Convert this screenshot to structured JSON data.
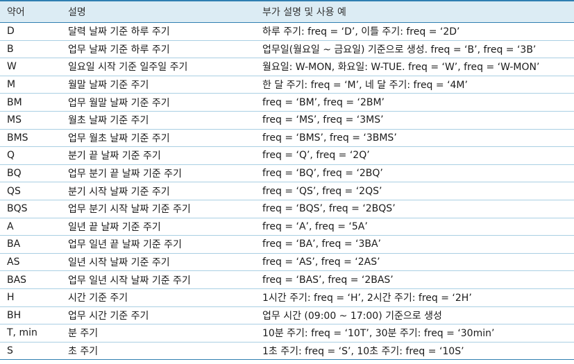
{
  "header": [
    "약어",
    "설명",
    "부가 설명 및 사용 예"
  ],
  "rows": [
    [
      "D",
      "달력 날짜 기준 하루 주기",
      "하루 주기: freq = ‘D’, 이틀 주기: freq = ‘2D’"
    ],
    [
      "B",
      "업무 날짜 기준 하루 주기",
      "업무일(월요일 ~ 금요일) 기준으로 생성. freq = ‘B’, freq = ‘3B’"
    ],
    [
      "W",
      "일요일 시작 기준 일주일 주기",
      "월요일: W-MON, 화요일: W-TUE. freq = ‘W’, freq = ‘W-MON’"
    ],
    [
      "M",
      "월말 날짜 기준 주기",
      "한 달 주기: freq = ‘M’, 네 달 주기: freq = ‘4M’"
    ],
    [
      "BM",
      "업무 월말 날짜 기준 주기",
      "freq = ‘BM’, freq = ‘2BM’"
    ],
    [
      "MS",
      "월초 날짜 기준 주기",
      "freq = ‘MS’, freq = ‘3MS’"
    ],
    [
      "BMS",
      "업무 월초 날짜 기준 주기",
      "freq = ‘BMS’, freq = ‘3BMS’"
    ],
    [
      "Q",
      "분기 끝 날짜 기준 주기",
      "freq = ‘Q’, freq = ‘2Q’"
    ],
    [
      "BQ",
      "업무 분기 끝 날짜 기준 주기",
      "freq = ‘BQ’, freq = ‘2BQ’"
    ],
    [
      "QS",
      "분기 시작 날짜 기준 주기",
      "freq = ‘QS’, freq = ‘2QS’"
    ],
    [
      "BQS",
      "업무 분기 시작 날짜 기준 주기",
      "freq = ‘BQS’, freq = ‘2BQS’"
    ],
    [
      "A",
      "일년 끝 날짜 기준 주기",
      "freq = ‘A’, freq = ‘5A’"
    ],
    [
      "BA",
      "업무 일년 끝 날짜 기준 주기",
      "freq = ‘BA’, freq = ‘3BA’"
    ],
    [
      "AS",
      "일년 시작 날짜 기준 주기",
      "freq = ‘AS’, freq = ‘2AS’"
    ],
    [
      "BAS",
      "업무 일년 시작 날짜 기준 주기",
      "freq = ‘BAS’, freq = ‘2BAS’"
    ],
    [
      "H",
      "시간 기준 주기",
      "1시간 주기: freq = ‘H’, 2시간 주기: freq = ‘2H’"
    ],
    [
      "BH",
      "업무 시간 기준 주기",
      "업무 시간 (09:00 ~ 17:00) 기준으로 생성"
    ],
    [
      "T, min",
      "분 주기",
      "10분 주기: freq = ‘10T’, 30분 주기: freq = ‘30min’"
    ],
    [
      "S",
      "초 주기",
      "1초 주기: freq = ‘S’, 10초 주기: freq = ‘10S’"
    ]
  ]
}
